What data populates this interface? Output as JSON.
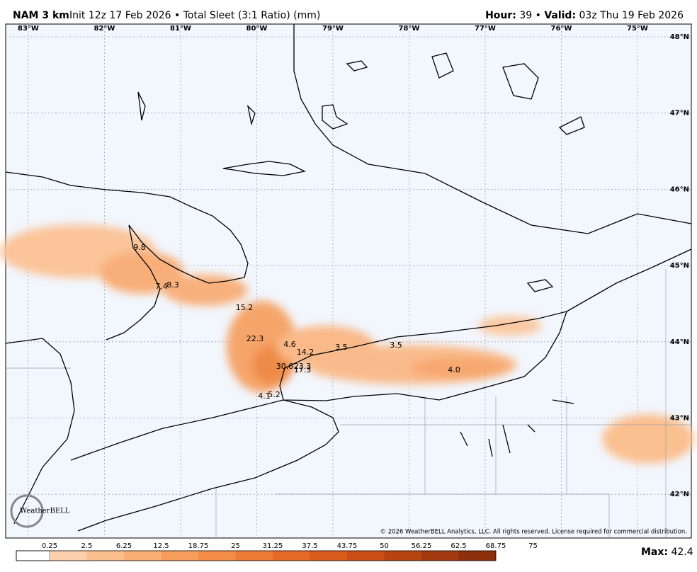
{
  "header": {
    "model": "NAM 3 km",
    "run_info": "Init 12z 17 Feb 2026 • Total Sleet (3:1 Ratio) (mm)",
    "hour_label": "Hour:",
    "hour": "39 •",
    "valid_label": "Valid:",
    "valid": "03z Thu 19 Feb 2026"
  },
  "map": {
    "longitudes": [
      "83°W",
      "82°W",
      "81°W",
      "80°W",
      "79°W",
      "78°W",
      "77°W",
      "76°W",
      "75°W"
    ],
    "latitudes": [
      "48°N",
      "47°N",
      "46°N",
      "45°N",
      "44°N",
      "43°N",
      "42°N"
    ],
    "point_values": [
      "9.8",
      "7.4",
      "8.3",
      "15.2",
      "22.3",
      "4.6",
      "14.2",
      "3.5",
      "3.5",
      "4.0",
      "30.6",
      "23.3",
      "17.3",
      "4.1",
      "5.2"
    ],
    "logo": "WeatherBELL",
    "copyright": "© 2026 WeatherBELL Analytics, LLC. All rights reserved. License required for commercial distribution."
  },
  "colorbar": {
    "labels": [
      "0.25",
      "2.5",
      "6.25",
      "12.5",
      "18.75",
      "25",
      "31.25",
      "37.5",
      "43.75",
      "50",
      "56.25",
      "62.5",
      "68.75",
      "75"
    ]
  },
  "max": {
    "label": "Max:",
    "value": "42.4"
  }
}
